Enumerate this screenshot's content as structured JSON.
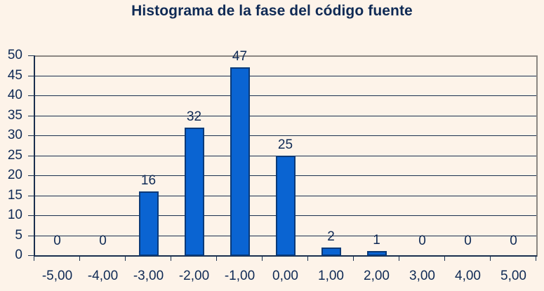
{
  "chart_data": {
    "type": "bar",
    "title": "Histograma de la fase del código fuente",
    "xlabel": "",
    "ylabel": "",
    "categories": [
      "-5,00",
      "-4,00",
      "-3,00",
      "-2,00",
      "-1,00",
      "0,00",
      "1,00",
      "2,00",
      "3,00",
      "4,00",
      "5,00"
    ],
    "values": [
      0,
      0,
      16,
      32,
      47,
      25,
      2,
      1,
      0,
      0,
      0
    ],
    "ylim": [
      0,
      50
    ],
    "yticks": [
      0,
      5,
      10,
      15,
      20,
      25,
      30,
      35,
      40,
      45,
      50
    ],
    "grid": true,
    "legend": false,
    "data_labels": true,
    "colors": {
      "bar_fill": "#0a64d2",
      "bar_border": "#0a3a78",
      "background": "#fdf3e9",
      "text": "#0f2a55"
    }
  }
}
